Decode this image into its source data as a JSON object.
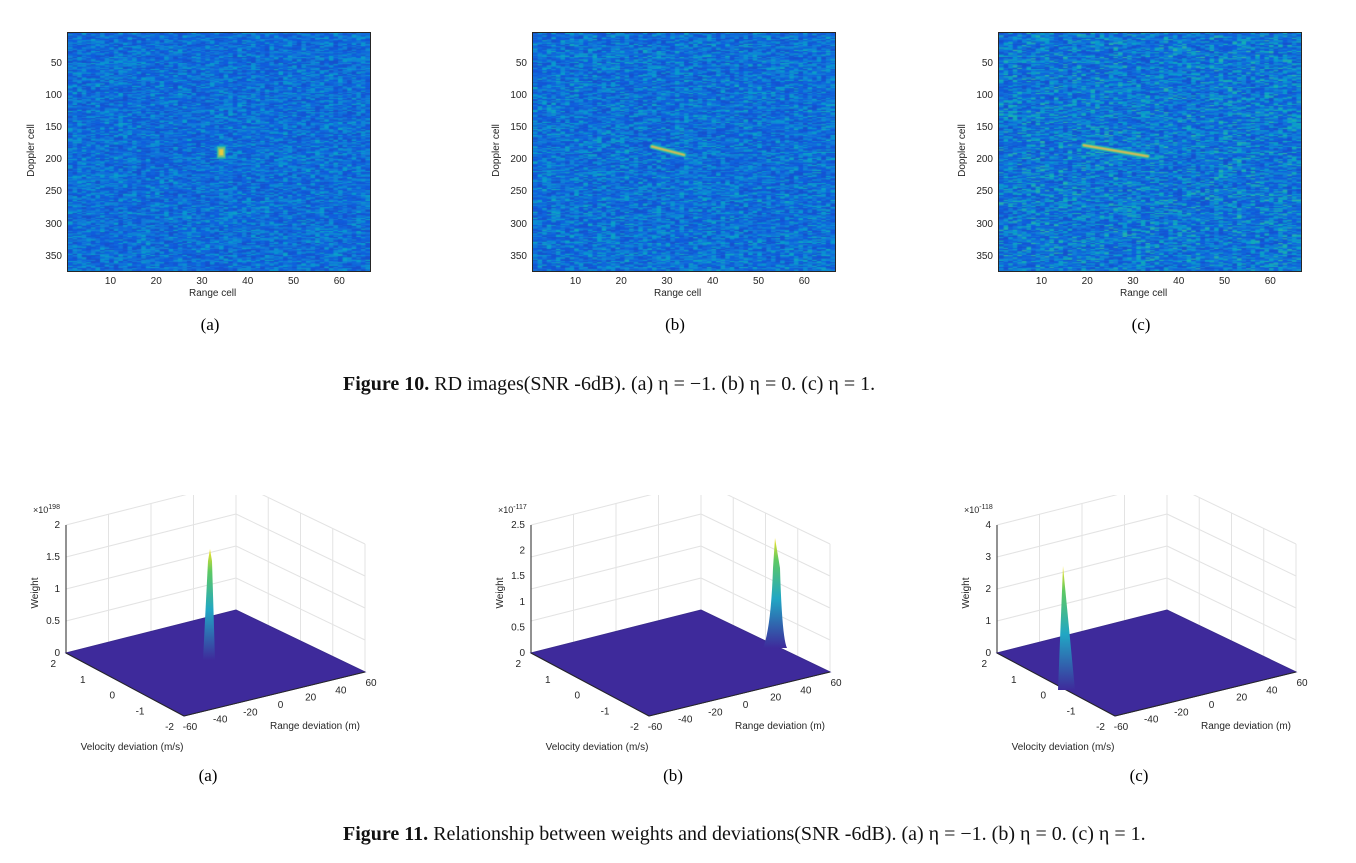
{
  "figure10": {
    "caption_label": "Figure 10.",
    "caption_text": "RD images(SNR -6dB). (a) η = −1. (b) η = 0. (c) η = 1.",
    "panels": [
      {
        "label": "(a)",
        "xlabel": "Range cell",
        "ylabel": "Doppler cell",
        "target": "compact blob near range cell 34, Doppler cell 185"
      },
      {
        "label": "(b)",
        "xlabel": "Range cell",
        "ylabel": "Doppler cell",
        "target": "short streak from range cell 27 to 33, Doppler cell 178–190"
      },
      {
        "label": "(c)",
        "xlabel": "Range cell",
        "ylabel": "Doppler cell",
        "target": "longer streak from range cell 19 to 33, Doppler cell 175–192"
      }
    ],
    "xticks": [
      "10",
      "20",
      "30",
      "40",
      "50",
      "60"
    ],
    "yticks": [
      "50",
      "100",
      "150",
      "200",
      "250",
      "300",
      "350"
    ]
  },
  "figure11": {
    "caption_label": "Figure 11.",
    "caption_text": "Relationship between weights and deviations(SNR -6dB). (a) η = −1. (b) η = 0. (c) η = 1.",
    "panels": [
      {
        "label": "(a)",
        "exponent": "198",
        "zticks": [
          "0",
          "0.5",
          "1",
          "1.5",
          "2"
        ],
        "peak": "1.6"
      },
      {
        "label": "(b)",
        "exponent": "-117",
        "zticks": [
          "0",
          "0.5",
          "1",
          "1.5",
          "2",
          "2.5"
        ],
        "peak": "2.3"
      },
      {
        "label": "(c)",
        "exponent": "-118",
        "zticks": [
          "0",
          "1",
          "2",
          "3",
          "4"
        ],
        "peak": "3.0"
      }
    ],
    "zlabel": "Weight",
    "velocity_label": "Velocity deviation (m/s)",
    "range_label": "Range deviation (m)",
    "velocity_ticks": [
      "2",
      "1",
      "0",
      "-1",
      "-2"
    ],
    "range_ticks": [
      "-60",
      "-40",
      "-20",
      "0",
      "20",
      "40",
      "60"
    ],
    "exponent_prefix": "×10"
  },
  "colors": {
    "base": "#3f3fd8",
    "surface": "#3e2a9b",
    "peak_top": "#f9e425",
    "peak_mid": "#21a7c4"
  }
}
